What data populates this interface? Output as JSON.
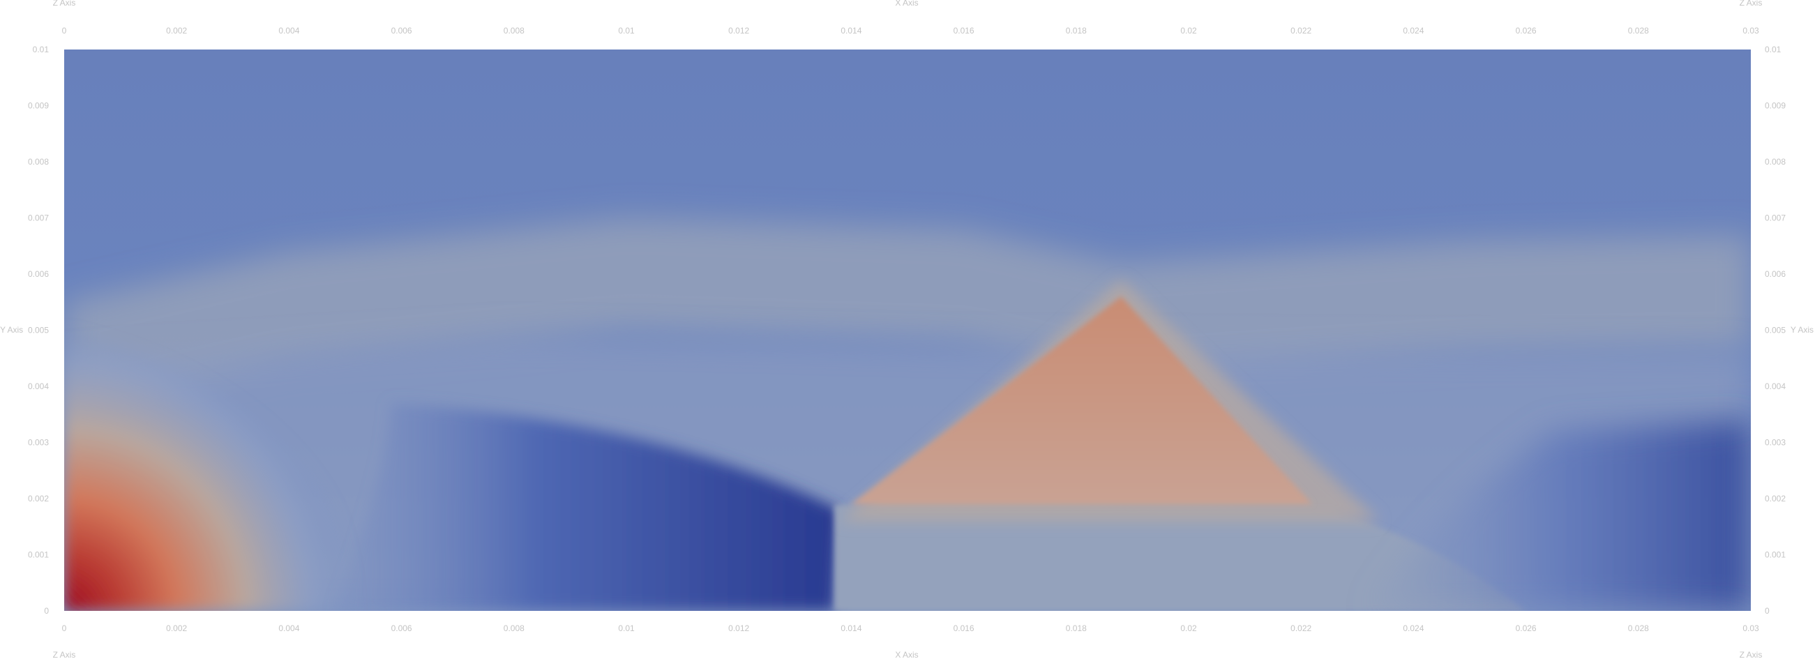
{
  "chart_data": {
    "type": "heatmap",
    "title": "",
    "colormap": "Cool to Warm",
    "colors": {
      "cold": "#3b4cc0",
      "mid": "#dddddd",
      "warm": "#b40426",
      "text": "#c4c4c4"
    },
    "axis_titles": {
      "x": "X Axis",
      "y": "Y Axis",
      "z": "Z Axis"
    },
    "xlim": [
      0,
      0.03
    ],
    "ylim": [
      0,
      0.01
    ],
    "x_ticks": [
      "0",
      "0.002",
      "0.004",
      "0.006",
      "0.008",
      "0.01",
      "0.012",
      "0.014",
      "0.016",
      "0.018",
      "0.02",
      "0.022",
      "0.024",
      "0.026",
      "0.028",
      "0.03"
    ],
    "y_ticks": [
      "0",
      "0.001",
      "0.002",
      "0.003",
      "0.004",
      "0.005",
      "0.006",
      "0.007",
      "0.008",
      "0.009",
      "0.01"
    ],
    "grid": false,
    "legend": "none",
    "features": {
      "incident_shock": {
        "from": [
          0,
          0.005
        ],
        "to": [
          0.0138,
          0.0018
        ]
      },
      "mach_stem_x": 0.0137,
      "slip_line_y": 0.0019,
      "triangle_apex": [
        0.0188,
        0.0056
      ],
      "triangle_right": [
        0.0222,
        0.0019
      ],
      "plume_edge": [
        [
          0,
          0.0051
        ],
        [
          0.004,
          0.006
        ],
        [
          0.01,
          0.0066
        ],
        [
          0.016,
          0.0064
        ],
        [
          0.0188,
          0.0058
        ],
        [
          0.025,
          0.0062
        ],
        [
          0.03,
          0.0063
        ]
      ]
    }
  }
}
